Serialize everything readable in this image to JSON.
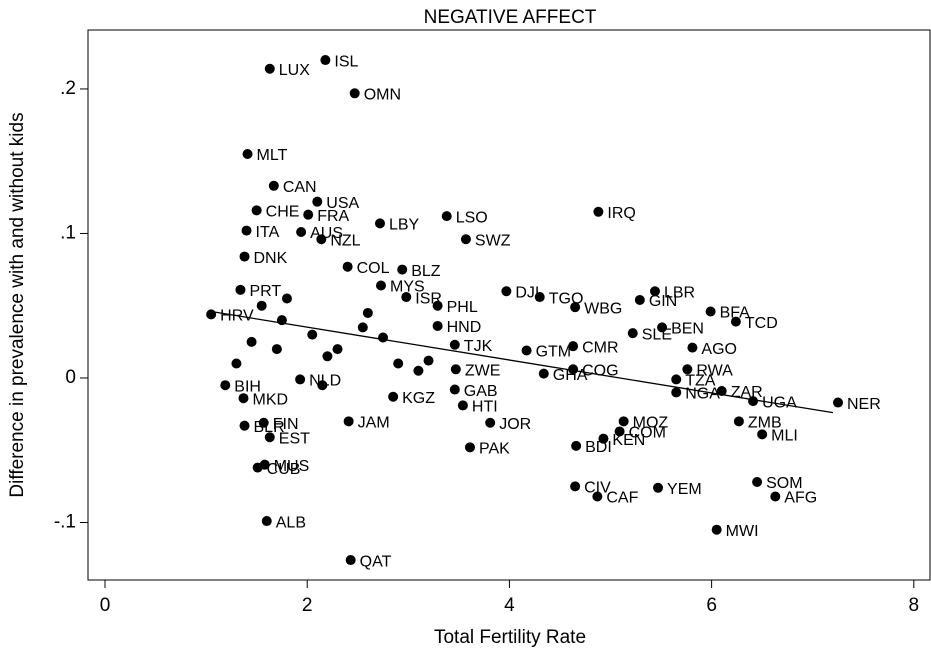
{
  "chart_data": {
    "type": "scatter",
    "title": "NEGATIVE AFFECT",
    "x_label": "Total Fertility Rate",
    "y_label": "Difference in prevalence with and without kids",
    "xlim": [
      -0.168,
      8.16
    ],
    "ylim": [
      -0.1398,
      0.2408
    ],
    "xticks": [
      0,
      2,
      4,
      6,
      8
    ],
    "yticks": [
      {
        "value": -0.1,
        "label": "-.1"
      },
      0,
      {
        "value": 0.1,
        "label": ".1"
      },
      {
        "value": 0.2,
        "label": ".2"
      }
    ],
    "color": "#000000",
    "x": [
      1.63,
      2.18,
      2.47,
      1.41,
      1.67,
      2.1,
      1.5,
      2.01,
      2.72,
      3.38,
      4.88,
      1.4,
      1.94,
      2.14,
      3.57,
      1.38,
      2.94,
      2.4,
      2.73,
      2.98,
      3.29,
      3.97,
      4.3,
      4.65,
      5.29,
      5.44,
      5.99,
      6.24,
      5.22,
      5.51,
      5.81,
      3.29,
      3.46,
      4.17,
      4.63,
      4.63,
      4.34,
      3.47,
      3.46,
      3.54,
      3.81,
      3.61,
      5.76,
      5.65,
      5.65,
      6.1,
      6.41,
      7.25,
      6.27,
      6.5,
      5.13,
      5.09,
      4.93,
      4.66,
      4.65,
      4.87,
      5.47,
      6.45,
      6.63,
      6.05,
      2.43,
      1.6,
      1.58,
      1.51,
      1.63,
      1.57,
      1.38,
      1.37,
      1.19,
      2.41,
      2.85,
      1.93,
      1.34,
      1.05,
      1.55,
      1.75,
      2.05,
      2.3,
      2.6,
      2.9,
      1.45,
      1.8,
      2.2,
      2.55,
      3.1,
      1.3,
      1.7,
      2.15,
      2.75,
      3.2
    ],
    "values": [
      0.214,
      0.22,
      0.197,
      0.155,
      0.133,
      0.122,
      0.116,
      0.113,
      0.107,
      0.112,
      0.115,
      0.102,
      0.101,
      0.096,
      0.096,
      0.084,
      0.075,
      0.077,
      0.064,
      0.056,
      0.05,
      0.06,
      0.056,
      0.049,
      0.054,
      0.06,
      0.046,
      0.039,
      0.031,
      0.035,
      0.021,
      0.036,
      0.023,
      0.019,
      0.022,
      0.006,
      0.003,
      0.006,
      -0.008,
      -0.019,
      -0.031,
      -0.048,
      0.006,
      -0.001,
      -0.01,
      -0.009,
      -0.016,
      -0.017,
      -0.03,
      -0.039,
      -0.03,
      -0.037,
      -0.042,
      -0.047,
      -0.075,
      -0.082,
      -0.076,
      -0.072,
      -0.082,
      -0.105,
      -0.126,
      -0.099,
      -0.06,
      -0.062,
      -0.041,
      -0.031,
      -0.033,
      -0.014,
      -0.005,
      -0.03,
      -0.013,
      -0.001,
      0.061,
      0.044,
      0.05,
      0.04,
      0.03,
      0.02,
      0.045,
      0.01,
      0.025,
      0.055,
      0.015,
      0.035,
      0.005,
      0.01,
      0.02,
      -0.005,
      0.028,
      0.012
    ],
    "point_labels": [
      "LUX",
      "ISL",
      "OMN",
      "MLT",
      "CAN",
      "USA",
      "CHE",
      "FRA",
      "LBY",
      "LSO",
      "IRQ",
      "ITA",
      "AUS",
      "NZL",
      "SWZ",
      "DNK",
      "BLZ",
      "COL",
      "MYS",
      "ISR",
      "PHL",
      "DJI",
      "TGO",
      "WBG",
      "GIN",
      "LBR",
      "BFA",
      "TCD",
      "SLE",
      "BEN",
      "AGO",
      "HND",
      "TJK",
      "GTM",
      "CMR",
      "COG",
      "GHA",
      "ZWE",
      "GAB",
      "HTI",
      "JOR",
      "PAK",
      "RWA",
      "TZA",
      "NGA",
      "ZAR",
      "UGA",
      "NER",
      "ZMB",
      "MLI",
      "MOZ",
      "COM",
      "KEN",
      "BDI",
      "CIV",
      "CAF",
      "YEM",
      "SOM",
      "AFG",
      "MWI",
      "QAT",
      "ALB",
      "MUS",
      "CUB",
      "EST",
      "FIN",
      "BLR",
      "MKD",
      "BIH",
      "JAM",
      "KGZ",
      "NLD",
      "PRT",
      "HRV",
      null,
      null,
      null,
      null,
      null,
      null,
      null,
      null,
      null,
      null,
      null,
      null,
      null,
      null,
      null,
      null
    ],
    "fit": {
      "x": [
        1.05,
        7.2
      ],
      "values": [
        0.046,
        -0.024
      ]
    }
  }
}
